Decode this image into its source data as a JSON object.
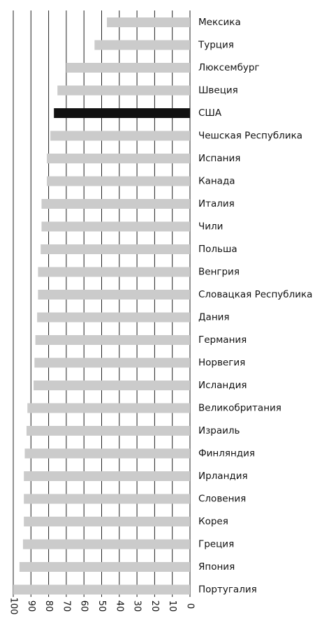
{
  "chart_data": {
    "type": "bar",
    "orientation": "horizontal",
    "x_direction": "reversed",
    "categories": [
      "Мексика",
      "Турция",
      "Люксембург",
      "Швеция",
      "США",
      "Чешская Республика",
      "Испания",
      "Канада",
      "Италия",
      "Чили",
      "Польша",
      "Венгрия",
      "Словацкая Республика",
      "Дания",
      "Германия",
      "Норвегия",
      "Исландия",
      "Великобритания",
      "Израиль",
      "Финляндия",
      "Ирландия",
      "Словения",
      "Корея",
      "Греция",
      "Япония",
      "Португалия"
    ],
    "values": [
      47,
      54,
      70,
      75,
      77,
      79,
      81,
      81,
      84,
      84,
      84.5,
      86,
      86,
      86.5,
      87.5,
      88,
      88.5,
      92,
      92.5,
      93.5,
      94,
      94,
      94,
      94.5,
      96.5,
      100
    ],
    "highlight": "США",
    "xlim": [
      0,
      100
    ],
    "xticks": [
      100,
      90,
      80,
      70,
      60,
      50,
      40,
      30,
      20,
      10,
      0
    ],
    "grid": true,
    "colors": {
      "bar": "#cbcbcb",
      "highlight": "#111111",
      "grid": "#222222"
    },
    "title": "",
    "xlabel": "",
    "ylabel": ""
  }
}
